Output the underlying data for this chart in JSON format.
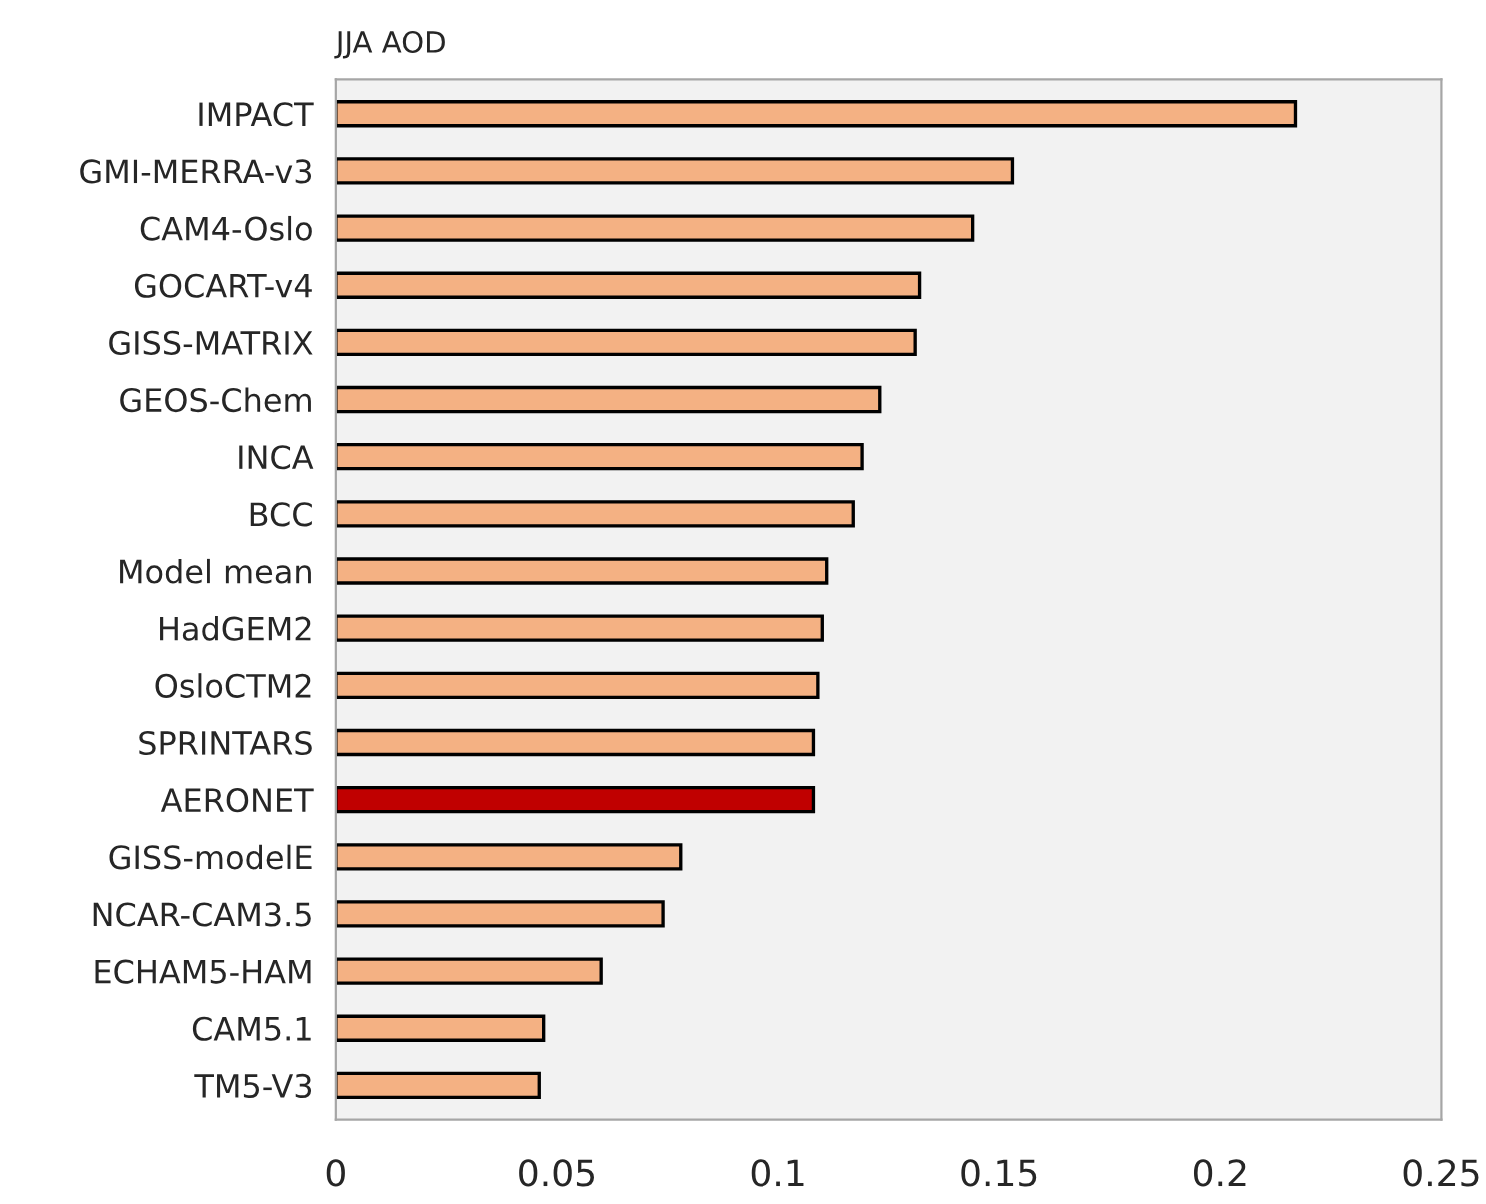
{
  "chart_data": {
    "type": "bar",
    "orientation": "horizontal",
    "title": "JJA AOD",
    "categories": [
      "IMPACT",
      "GMI-MERRA-v3",
      "CAM4-Oslo",
      "GOCART-v4",
      "GISS-MATRIX",
      "GEOS-Chem",
      "INCA",
      "BCC",
      "Model mean",
      "HadGEM2",
      "OsloCTM2",
      "SPRINTARS",
      "AERONET",
      "GISS-modelE",
      "NCAR-CAM3.5",
      "ECHAM5-HAM",
      "CAM5.1",
      "TM5-V3"
    ],
    "values": [
      0.217,
      0.153,
      0.144,
      0.132,
      0.131,
      0.123,
      0.119,
      0.117,
      0.111,
      0.11,
      0.109,
      0.108,
      0.108,
      0.078,
      0.074,
      0.06,
      0.047,
      0.046
    ],
    "colors": [
      "#f4b183",
      "#f4b183",
      "#f4b183",
      "#f4b183",
      "#f4b183",
      "#f4b183",
      "#f4b183",
      "#f4b183",
      "#f4b183",
      "#f4b183",
      "#f4b183",
      "#f4b183",
      "#c00000",
      "#f4b183",
      "#f4b183",
      "#f4b183",
      "#f4b183",
      "#f4b183"
    ],
    "xlim": [
      0,
      0.25
    ],
    "xticks": [
      0,
      0.05,
      0.1,
      0.15,
      0.2,
      0.25
    ],
    "grid": false
  }
}
